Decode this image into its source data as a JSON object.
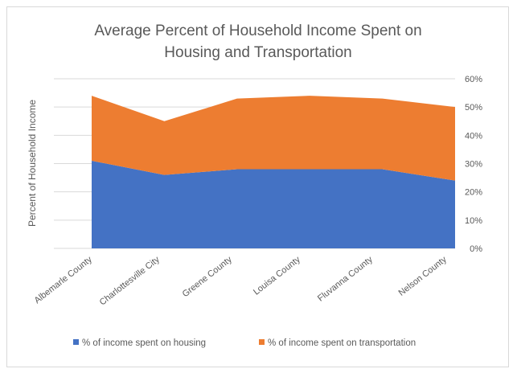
{
  "chart_data": {
    "type": "area",
    "stacked": true,
    "title": "Average Percent of Household Income Spent on Housing and Transportation",
    "title_lines": [
      "Average Percent of Household Income Spent on",
      "Housing and Transportation"
    ],
    "ylabel": "Percent of Household Income",
    "xlabel": "",
    "categories": [
      "Albemarle County",
      "Charlottesville City",
      "Greene County",
      "Louisa County",
      "Fluvanna County",
      "Nelson County"
    ],
    "ylim": [
      0,
      60
    ],
    "yticks": [
      0,
      10,
      20,
      30,
      40,
      50,
      60
    ],
    "ytick_labels": [
      "0%",
      "10%",
      "20%",
      "30%",
      "40%",
      "50%",
      "60%"
    ],
    "grid": true,
    "legend_position": "bottom",
    "series": [
      {
        "name": "% of income spent on housing",
        "color": "#4472c4",
        "values": [
          31,
          26,
          28,
          28,
          28,
          24
        ]
      },
      {
        "name": "% of income spent on transportation",
        "color": "#ed7d31",
        "values": [
          23,
          19,
          25,
          26,
          25,
          26
        ]
      }
    ]
  }
}
